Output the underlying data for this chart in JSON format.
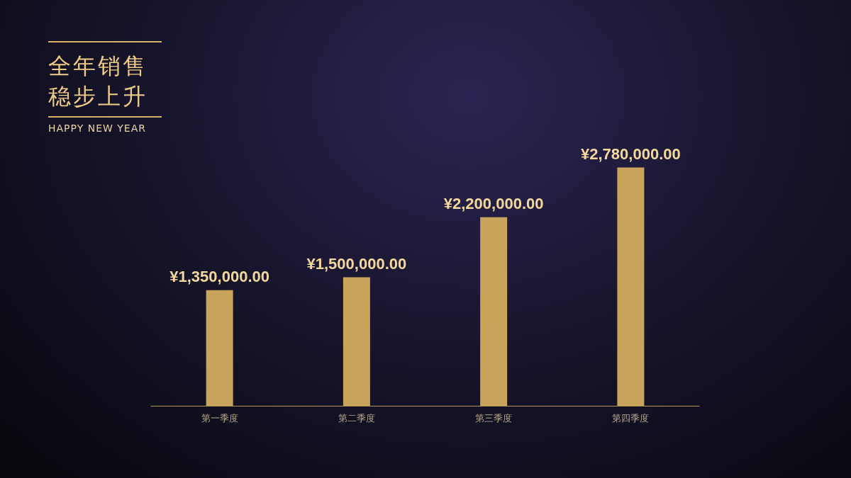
{
  "chart_data": {
    "type": "bar",
    "title": "全年销售稳步上升",
    "subtitle": "HAPPY NEW YEAR",
    "categories": [
      "第一季度",
      "第二季度",
      "第三季度",
      "第四季度"
    ],
    "values": [
      1350000,
      1500000,
      2200000,
      2780000
    ],
    "value_labels": [
      "¥1,350,000.00",
      "¥1,500,000.00",
      "¥2,200,000.00",
      "¥2,780,000.00"
    ],
    "color": "#c9a45c"
  }
}
